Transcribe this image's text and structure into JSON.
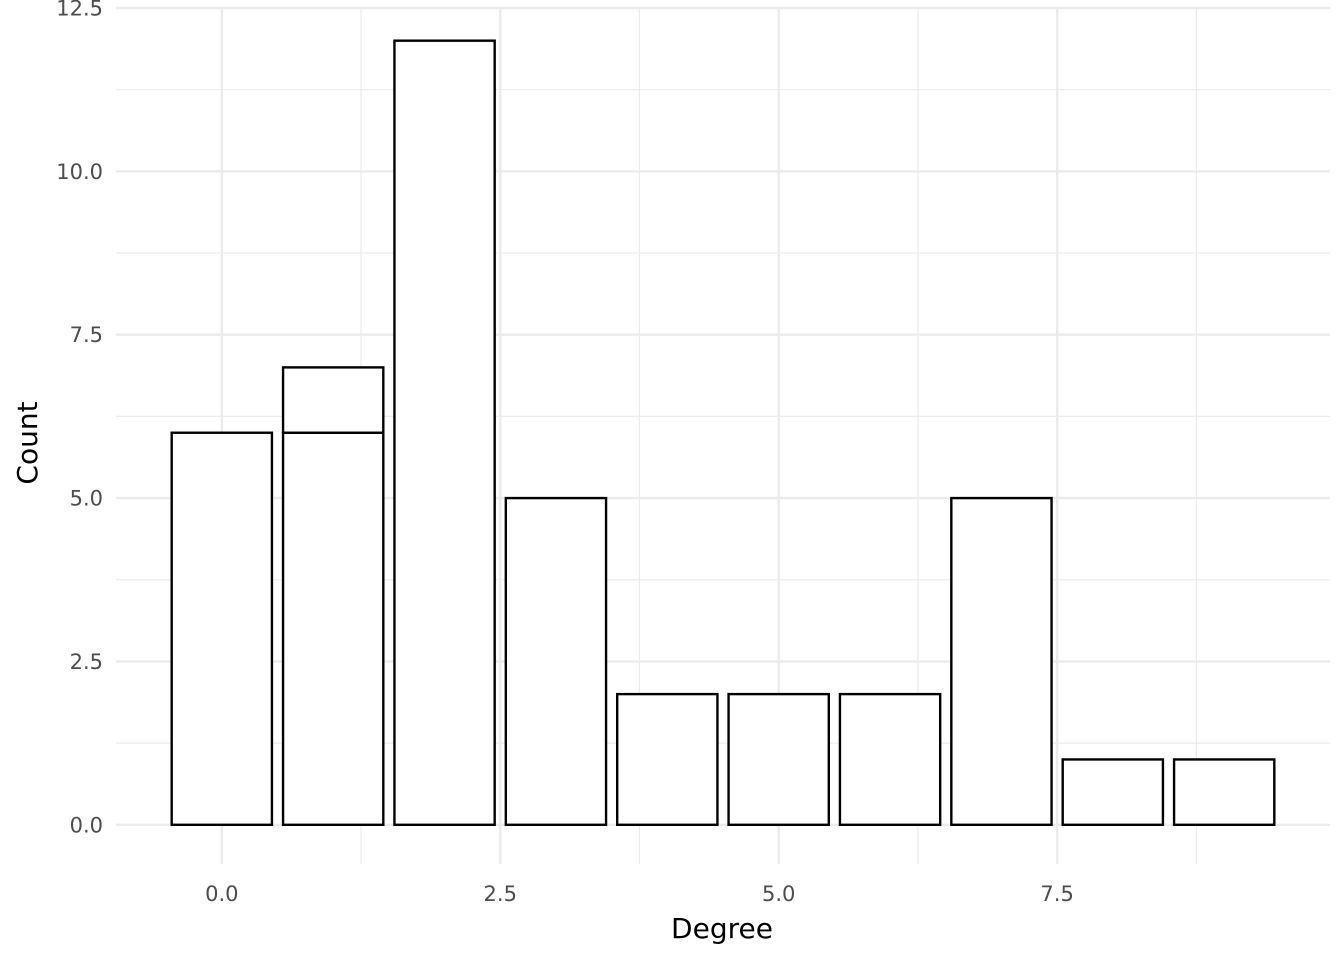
{
  "chart_data": {
    "type": "bar",
    "xlabel": "Degree",
    "ylabel": "Count",
    "xlim": [
      -0.95,
      9.95
    ],
    "ylim": [
      -0.6,
      12.5
    ],
    "x_ticks": [
      0.0,
      2.5,
      5.0,
      7.5
    ],
    "x_tick_labels": [
      "0.0",
      "2.5",
      "5.0",
      "7.5"
    ],
    "y_ticks": [
      0.0,
      2.5,
      5.0,
      7.5,
      10.0,
      12.5
    ],
    "y_tick_labels": [
      "0.0",
      "2.5",
      "5.0",
      "7.5",
      "10.0",
      "12.5"
    ],
    "grid": true,
    "legend": "none",
    "bar_fill": "#ffffff",
    "bar_stroke": "#000000",
    "bars": [
      {
        "x": 0,
        "y_start": 0,
        "y_end": 6
      },
      {
        "x": 1,
        "y_start": 0,
        "y_end": 6
      },
      {
        "x": 1,
        "y_start": 6,
        "y_end": 7
      },
      {
        "x": 2,
        "y_start": 0,
        "y_end": 12
      },
      {
        "x": 3,
        "y_start": 0,
        "y_end": 5
      },
      {
        "x": 4,
        "y_start": 0,
        "y_end": 2
      },
      {
        "x": 5,
        "y_start": 0,
        "y_end": 2
      },
      {
        "x": 6,
        "y_start": 0,
        "y_end": 2
      },
      {
        "x": 7,
        "y_start": 0,
        "y_end": 5
      },
      {
        "x": 8,
        "y_start": 0,
        "y_end": 1
      },
      {
        "x": 9,
        "y_start": 0,
        "y_end": 1
      }
    ]
  }
}
